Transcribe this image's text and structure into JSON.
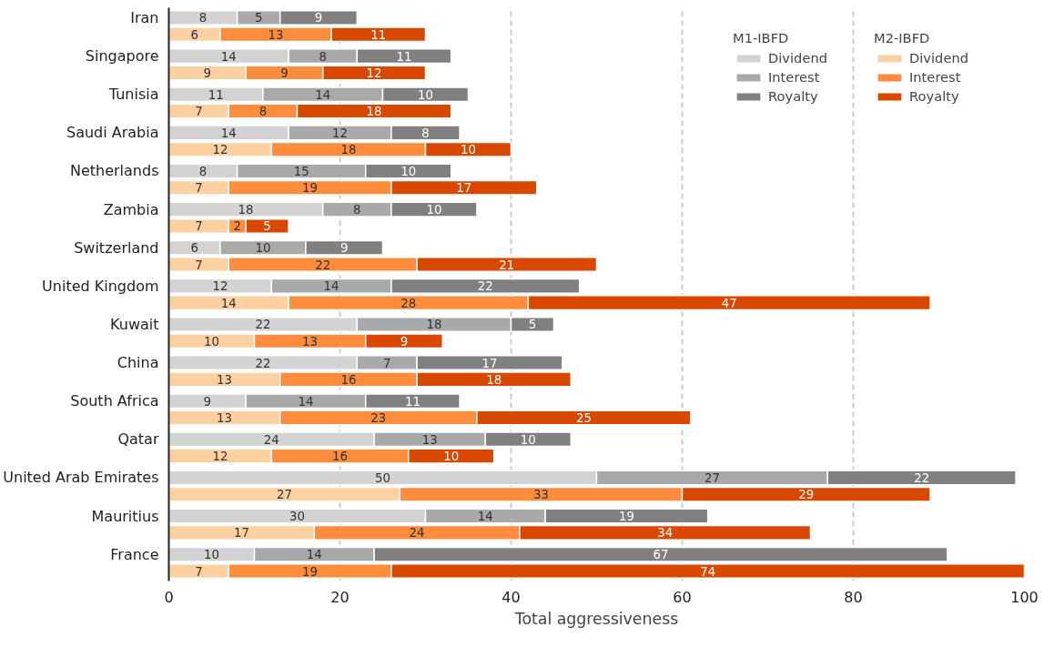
{
  "chart_data": {
    "type": "bar",
    "orientation": "horizontal",
    "stacked": true,
    "data_labels": true,
    "xlabel": "Total aggressiveness",
    "xlim": [
      0,
      100
    ],
    "xticks": [
      0,
      20,
      40,
      60,
      80,
      100
    ],
    "grid": "x",
    "legend": "top right",
    "annotations": [
      "M1-IBFD",
      "M2-IBFD"
    ],
    "categories": [
      "Iran",
      null,
      "Singapore",
      null,
      "Tunisia",
      null,
      "Saudi Arabia",
      null,
      "Netherlands",
      null,
      "Zambia",
      null,
      "Switzerland",
      null,
      "United Kingdom",
      null,
      "Kuwait",
      null,
      "China",
      null,
      "South Africa",
      null,
      "Qatar",
      null,
      "United Arab Emirates",
      null,
      "Mauritius",
      null,
      "France",
      null
    ],
    "series": [
      {
        "name": "Dividend",
        "color": "#d3d3d3",
        "values": [
          8,
          null,
          14,
          null,
          11,
          null,
          14,
          null,
          8,
          null,
          18,
          null,
          6,
          null,
          12,
          null,
          22,
          null,
          22,
          null,
          9,
          null,
          24,
          null,
          50,
          null,
          30,
          null,
          10,
          null
        ]
      },
      {
        "name": "Interest",
        "color": "#a9a9a9",
        "values": [
          5,
          null,
          8,
          null,
          14,
          null,
          12,
          null,
          15,
          null,
          8,
          null,
          10,
          null,
          14,
          null,
          18,
          null,
          7,
          null,
          14,
          null,
          13,
          null,
          27,
          null,
          14,
          null,
          14,
          null
        ]
      },
      {
        "name": "Royalty",
        "color": "#808080",
        "values": [
          9,
          null,
          11,
          null,
          10,
          null,
          8,
          null,
          10,
          null,
          10,
          null,
          9,
          null,
          22,
          null,
          5,
          null,
          17,
          null,
          11,
          null,
          10,
          null,
          22,
          null,
          19,
          null,
          67,
          null
        ]
      },
      {
        "name": "Dividend",
        "color": "#fdd0a2",
        "values": [
          null,
          6,
          null,
          9,
          null,
          7,
          null,
          12,
          null,
          7,
          null,
          7,
          null,
          7,
          null,
          14,
          null,
          10,
          null,
          13,
          null,
          13,
          null,
          12,
          null,
          27,
          null,
          17,
          null,
          7
        ]
      },
      {
        "name": "Interest",
        "color": "#fd8d3c",
        "values": [
          null,
          13,
          null,
          9,
          null,
          8,
          null,
          18,
          null,
          19,
          null,
          2,
          null,
          22,
          null,
          28,
          null,
          13,
          null,
          16,
          null,
          23,
          null,
          16,
          null,
          33,
          null,
          24,
          null,
          19
        ]
      },
      {
        "name": "Royalty",
        "color": "#d94801",
        "values": [
          null,
          11,
          null,
          12,
          null,
          18,
          null,
          10,
          null,
          17,
          null,
          5,
          null,
          21,
          null,
          47,
          null,
          9,
          null,
          18,
          null,
          25,
          null,
          10,
          null,
          29,
          null,
          34,
          null,
          74
        ]
      }
    ]
  }
}
